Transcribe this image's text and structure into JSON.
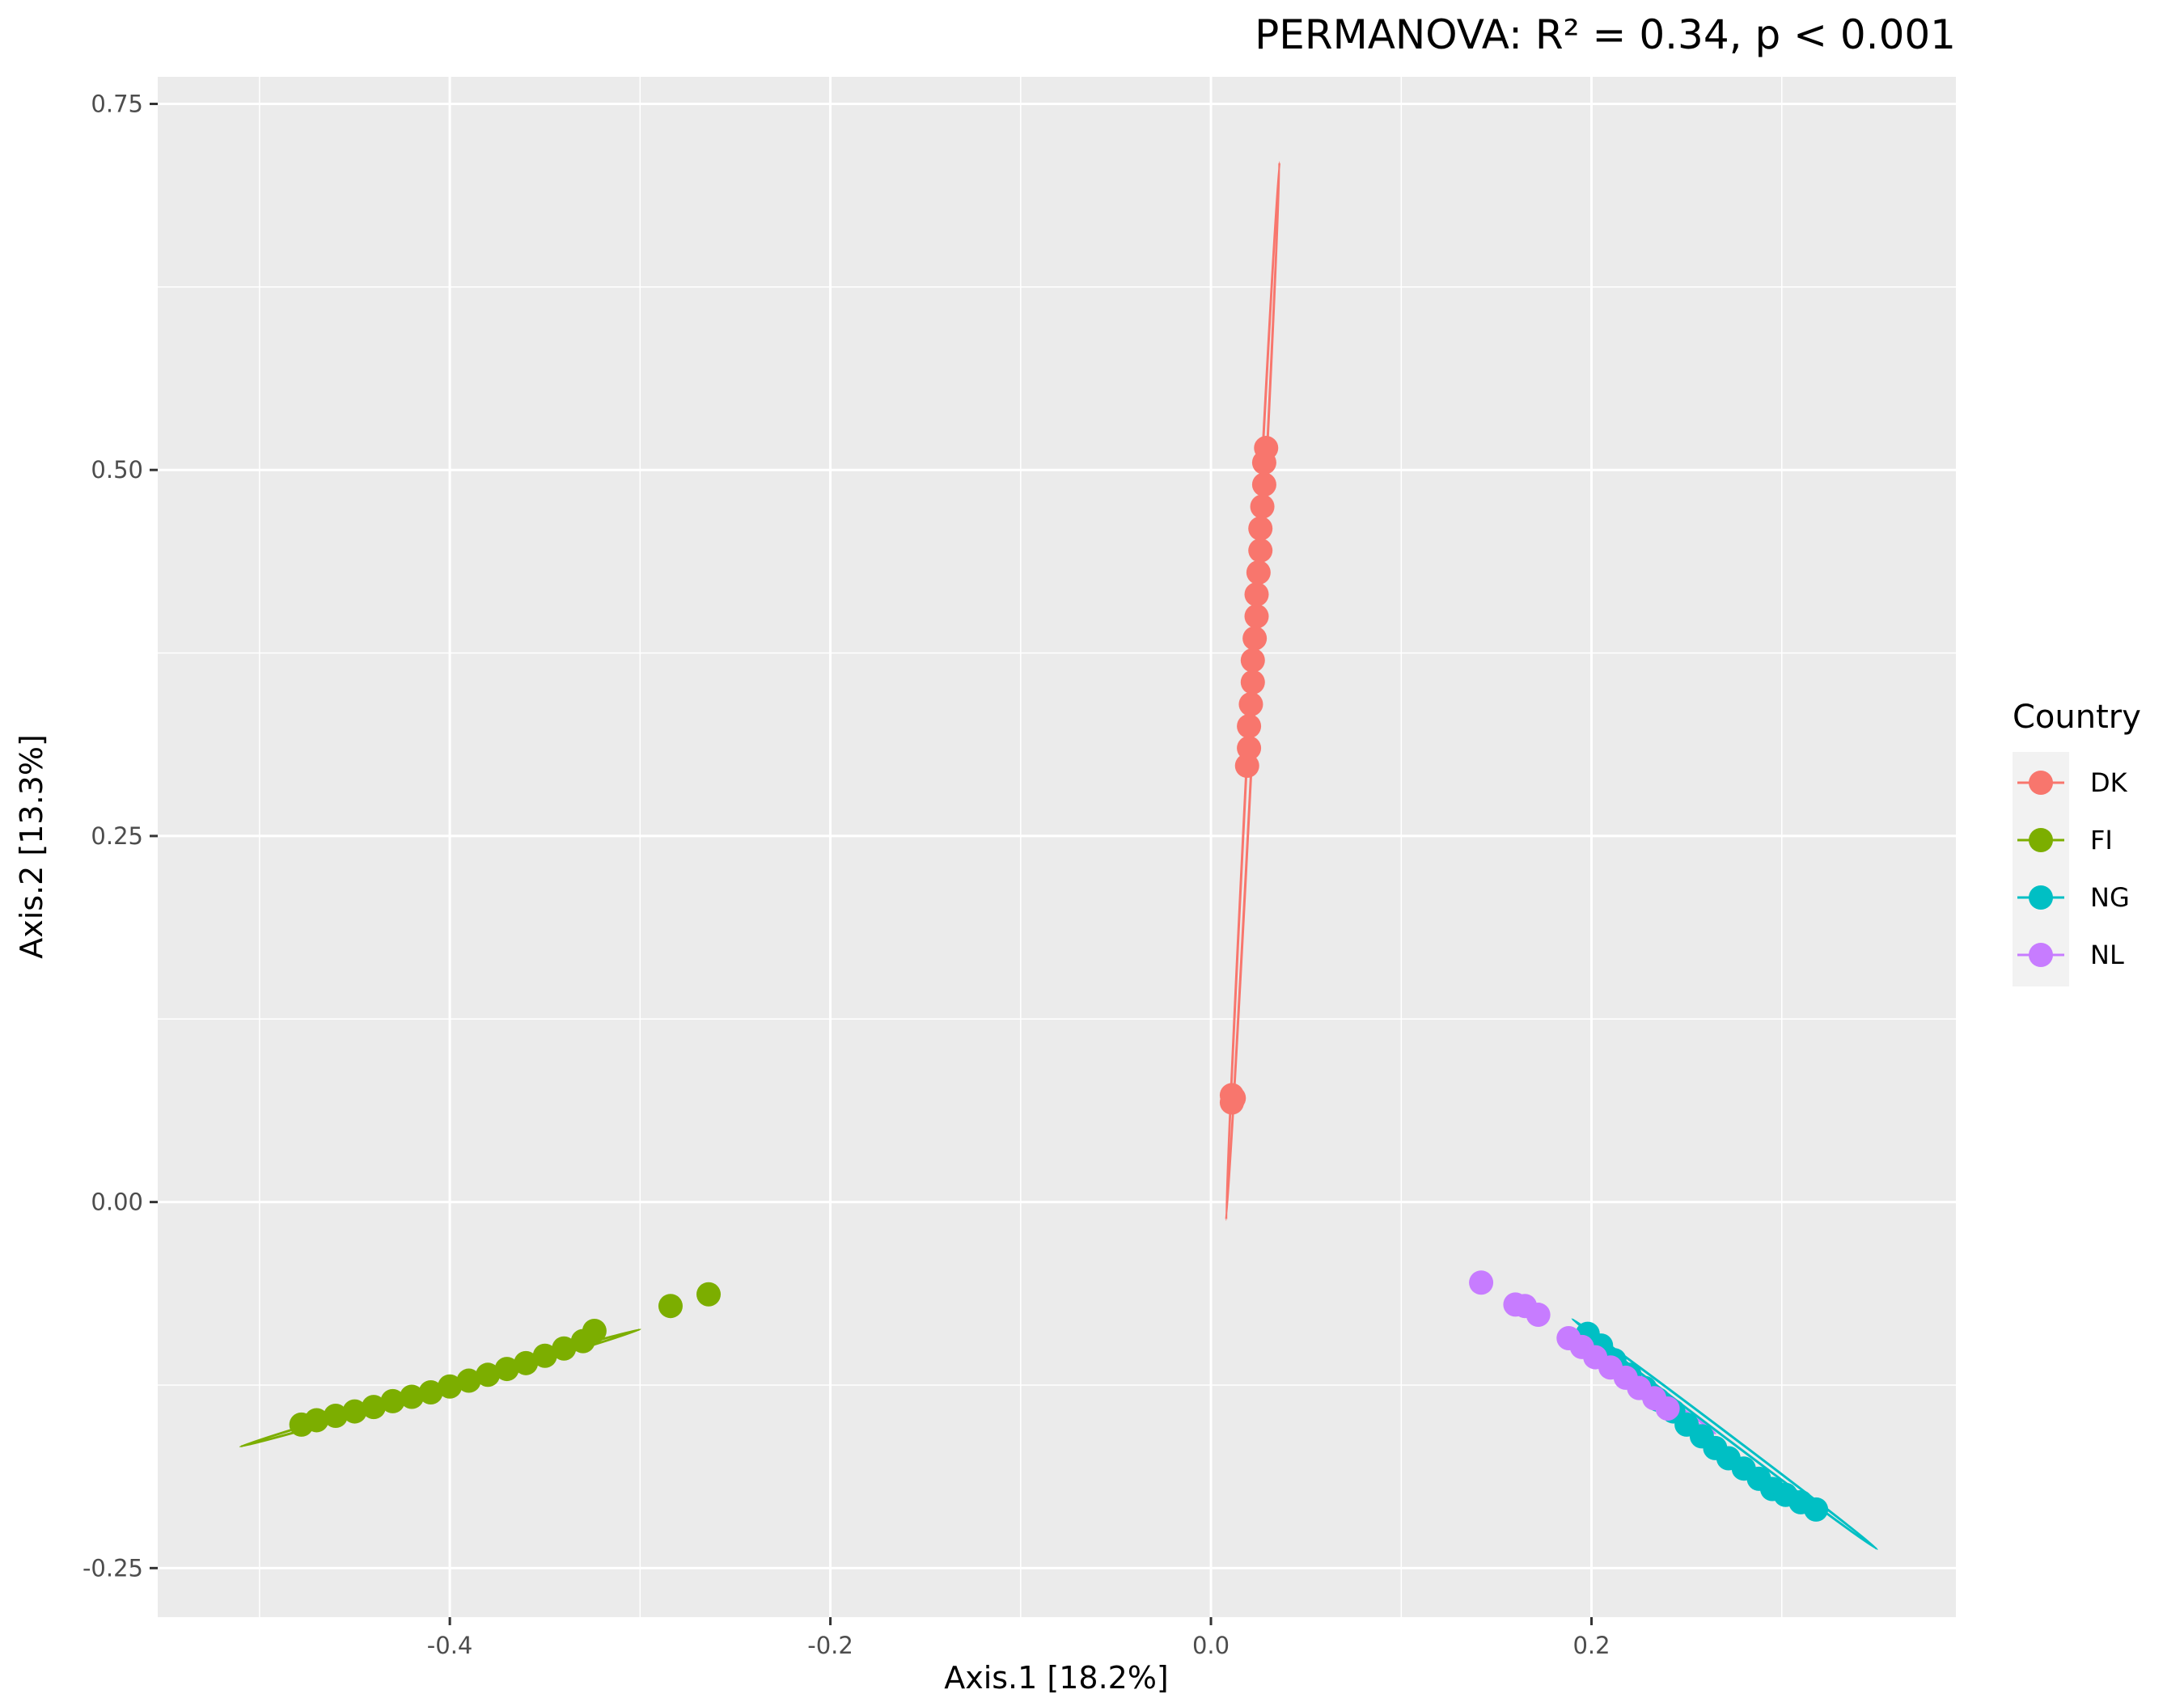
{
  "chart_data": {
    "type": "scatter",
    "title": "PERMANOVA: R² = 0.34, p < 0.001",
    "xlabel": "Axis.1   [18.2%]",
    "ylabel": "Axis.2   [13.3%]",
    "xlim": [
      -0.5535,
      0.3915
    ],
    "ylim": [
      -0.2835,
      0.7685
    ],
    "x_ticks": [
      {
        "value": -0.4,
        "label": "-0.4"
      },
      {
        "value": -0.2,
        "label": "-0.2"
      },
      {
        "value": 0.0,
        "label": "0.0"
      },
      {
        "value": 0.2,
        "label": "0.2"
      }
    ],
    "y_ticks": [
      {
        "value": -0.25,
        "label": "-0.25"
      },
      {
        "value": 0.0,
        "label": "0.00"
      },
      {
        "value": 0.25,
        "label": "0.25"
      },
      {
        "value": 0.5,
        "label": "0.50"
      },
      {
        "value": 0.75,
        "label": "0.75"
      }
    ],
    "grid": true,
    "background": "#EBEBEB",
    "legend": {
      "title": "Country",
      "position": "right"
    },
    "series": [
      {
        "name": "DK",
        "color": "#F8766D",
        "points": [
          [
            0.011,
            0.068
          ],
          [
            0.011,
            0.073
          ],
          [
            0.012,
            0.071
          ],
          [
            0.019,
            0.298
          ],
          [
            0.02,
            0.31
          ],
          [
            0.02,
            0.325
          ],
          [
            0.021,
            0.34
          ],
          [
            0.022,
            0.355
          ],
          [
            0.022,
            0.37
          ],
          [
            0.023,
            0.385
          ],
          [
            0.024,
            0.4
          ],
          [
            0.024,
            0.415
          ],
          [
            0.025,
            0.43
          ],
          [
            0.026,
            0.445
          ],
          [
            0.026,
            0.46
          ],
          [
            0.027,
            0.475
          ],
          [
            0.028,
            0.49
          ],
          [
            0.028,
            0.505
          ],
          [
            0.029,
            0.515
          ]
        ],
        "ellipse": [
          [
            0.008,
            -0.012
          ],
          [
            0.036,
            0.71
          ]
        ]
      },
      {
        "name": "FI",
        "color": "#7CAE00",
        "points": [
          [
            -0.478,
            -0.152
          ],
          [
            -0.47,
            -0.149
          ],
          [
            -0.46,
            -0.146
          ],
          [
            -0.45,
            -0.143
          ],
          [
            -0.44,
            -0.14
          ],
          [
            -0.43,
            -0.136
          ],
          [
            -0.42,
            -0.133
          ],
          [
            -0.41,
            -0.13
          ],
          [
            -0.4,
            -0.126
          ],
          [
            -0.39,
            -0.122
          ],
          [
            -0.38,
            -0.118
          ],
          [
            -0.37,
            -0.114
          ],
          [
            -0.36,
            -0.11
          ],
          [
            -0.35,
            -0.105
          ],
          [
            -0.34,
            -0.1
          ],
          [
            -0.33,
            -0.095
          ],
          [
            -0.324,
            -0.088
          ],
          [
            -0.284,
            -0.071
          ],
          [
            -0.264,
            -0.063
          ]
        ],
        "ellipse": [
          [
            -0.51,
            -0.167
          ],
          [
            -0.3,
            -0.087
          ]
        ]
      },
      {
        "name": "NG",
        "color": "#00BFC4",
        "points": [
          [
            0.198,
            -0.09
          ],
          [
            0.205,
            -0.098
          ],
          [
            0.212,
            -0.108
          ],
          [
            0.22,
            -0.118
          ],
          [
            0.228,
            -0.127
          ],
          [
            0.235,
            -0.135
          ],
          [
            0.243,
            -0.143
          ],
          [
            0.25,
            -0.152
          ],
          [
            0.258,
            -0.16
          ],
          [
            0.265,
            -0.168
          ],
          [
            0.272,
            -0.175
          ],
          [
            0.28,
            -0.182
          ],
          [
            0.288,
            -0.189
          ],
          [
            0.295,
            -0.196
          ],
          [
            0.302,
            -0.2
          ],
          [
            0.31,
            -0.205
          ],
          [
            0.318,
            -0.21
          ]
        ],
        "ellipse": [
          [
            0.19,
            -0.08
          ],
          [
            0.35,
            -0.237
          ]
        ]
      },
      {
        "name": "NL",
        "color": "#C77CFF",
        "points": [
          [
            0.142,
            -0.055
          ],
          [
            0.16,
            -0.07
          ],
          [
            0.165,
            -0.071
          ],
          [
            0.172,
            -0.077
          ],
          [
            0.188,
            -0.093
          ],
          [
            0.195,
            -0.099
          ],
          [
            0.202,
            -0.106
          ],
          [
            0.21,
            -0.113
          ],
          [
            0.218,
            -0.12
          ],
          [
            0.225,
            -0.127
          ],
          [
            0.233,
            -0.134
          ],
          [
            0.24,
            -0.141
          ]
        ],
        "ellipse": [
          [
            0.185,
            -0.088
          ],
          [
            0.265,
            -0.158
          ]
        ]
      }
    ]
  }
}
